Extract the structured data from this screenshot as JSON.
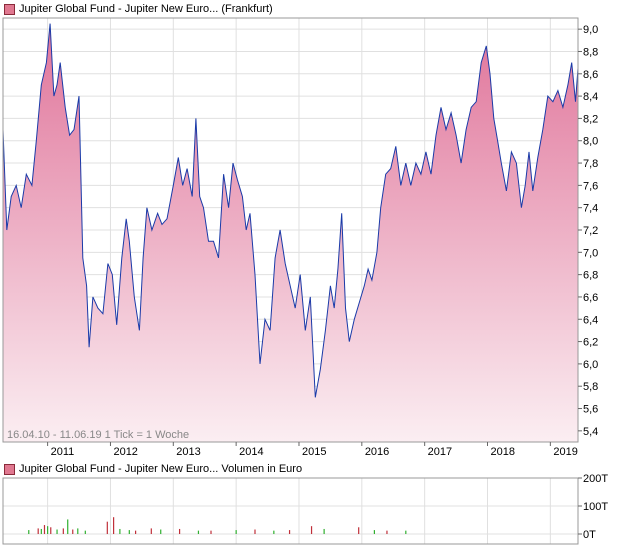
{
  "colors": {
    "line": "#1a3aa8",
    "fill_top": "#e0749a",
    "fill_bottom": "#fbeef2",
    "grid": "#e0e0e0",
    "frame": "#999999",
    "legend_swatch": "#e07890",
    "volume_red": "#c0303a",
    "volume_green": "#30b030"
  },
  "chart_data": [
    {
      "type": "area",
      "title": "Jupiter Global Fund - Jupiter New Euro... (Frankfurt)",
      "legend_swatch_color": "#e07890",
      "footer": "16.04.10 - 11.06.19   1 Tick = 1 Woche",
      "x_tick_labels": [
        "2011",
        "2012",
        "2013",
        "2014",
        "2015",
        "2016",
        "2017",
        "2018",
        "2019"
      ],
      "x_range": [
        2010.29,
        2019.44
      ],
      "y_tick_labels": [
        "5,4",
        "5,6",
        "5,8",
        "6,0",
        "6,2",
        "6,4",
        "6,6",
        "6,8",
        "7,0",
        "7,2",
        "7,4",
        "7,6",
        "7,8",
        "8,0",
        "8,2",
        "8,4",
        "8,6",
        "8,8",
        "9,0"
      ],
      "ylim": [
        5.3,
        9.1
      ],
      "grid": true,
      "series": [
        {
          "x": [
            2010.29,
            2010.35,
            2010.42,
            2010.5,
            2010.58,
            2010.66,
            2010.75,
            2010.82,
            2010.9,
            2010.98,
            2011.04,
            2011.1,
            2011.15,
            2011.2,
            2011.28,
            2011.35,
            2011.42,
            2011.5,
            2011.56,
            2011.62,
            2011.66,
            2011.72,
            2011.8,
            2011.88,
            2011.96,
            2012.03,
            2012.1,
            2012.18,
            2012.25,
            2012.3,
            2012.38,
            2012.46,
            2012.52,
            2012.58,
            2012.66,
            2012.75,
            2012.82,
            2012.9,
            2013.0,
            2013.08,
            2013.15,
            2013.22,
            2013.3,
            2013.36,
            2013.42,
            2013.48,
            2013.56,
            2013.64,
            2013.72,
            2013.8,
            2013.88,
            2013.95,
            2014.02,
            2014.1,
            2014.16,
            2014.22,
            2014.3,
            2014.38,
            2014.46,
            2014.54,
            2014.62,
            2014.7,
            2014.78,
            2014.86,
            2014.94,
            2015.02,
            2015.1,
            2015.18,
            2015.26,
            2015.34,
            2015.42,
            2015.5,
            2015.56,
            2015.62,
            2015.68,
            2015.74,
            2015.8,
            2015.88,
            2015.96,
            2016.04,
            2016.1,
            2016.16,
            2016.24,
            2016.3,
            2016.38,
            2016.46,
            2016.54,
            2016.62,
            2016.7,
            2016.78,
            2016.86,
            2016.94,
            2017.02,
            2017.1,
            2017.18,
            2017.26,
            2017.34,
            2017.42,
            2017.5,
            2017.58,
            2017.66,
            2017.74,
            2017.82,
            2017.9,
            2017.98,
            2018.04,
            2018.1,
            2018.16,
            2018.22,
            2018.3,
            2018.38,
            2018.46,
            2018.54,
            2018.6,
            2018.66,
            2018.72,
            2018.8,
            2018.88,
            2018.96,
            2019.04,
            2019.12,
            2019.2,
            2019.28,
            2019.34,
            2019.4,
            2019.44
          ],
          "y": [
            8.1,
            7.2,
            7.5,
            7.6,
            7.4,
            7.7,
            7.6,
            8.0,
            8.5,
            8.7,
            9.05,
            8.4,
            8.5,
            8.7,
            8.3,
            8.05,
            8.1,
            8.4,
            6.95,
            6.7,
            6.15,
            6.6,
            6.5,
            6.45,
            6.9,
            6.8,
            6.35,
            6.95,
            7.3,
            7.1,
            6.6,
            6.3,
            6.95,
            7.4,
            7.2,
            7.35,
            7.25,
            7.3,
            7.6,
            7.85,
            7.6,
            7.75,
            7.5,
            8.2,
            7.5,
            7.4,
            7.1,
            7.1,
            6.95,
            7.7,
            7.4,
            7.8,
            7.65,
            7.5,
            7.2,
            7.35,
            6.8,
            6.0,
            6.4,
            6.3,
            6.95,
            7.2,
            6.9,
            6.7,
            6.5,
            6.8,
            6.3,
            6.6,
            5.7,
            5.95,
            6.3,
            6.7,
            6.5,
            6.85,
            7.35,
            6.5,
            6.2,
            6.4,
            6.55,
            6.7,
            6.85,
            6.75,
            7.0,
            7.4,
            7.7,
            7.75,
            7.95,
            7.6,
            7.8,
            7.6,
            7.8,
            7.7,
            7.9,
            7.7,
            8.05,
            8.3,
            8.1,
            8.25,
            8.05,
            7.8,
            8.1,
            8.3,
            8.35,
            8.7,
            8.85,
            8.6,
            8.2,
            8.0,
            7.8,
            7.55,
            7.9,
            7.8,
            7.4,
            7.6,
            7.9,
            7.55,
            7.85,
            8.1,
            8.4,
            8.35,
            8.45,
            8.3,
            8.5,
            8.7,
            8.35,
            8.65
          ]
        }
      ]
    },
    {
      "type": "bar",
      "title": "Jupiter Global Fund - Jupiter New Euro... Volumen in Euro",
      "legend_swatch_color": "#e07890",
      "y_tick_labels": [
        "0T",
        "100T",
        "200T"
      ],
      "ylim": [
        0,
        200
      ],
      "grid": true,
      "series": [
        {
          "color": "#c0303a",
          "x": [
            2010.85,
            2010.95,
            2011.05,
            2011.25,
            2011.4,
            2011.95,
            2012.05,
            2012.4,
            2012.65,
            2013.1,
            2013.6,
            2014.3,
            2014.85,
            2015.2,
            2015.95,
            2016.4
          ],
          "values": [
            20,
            32,
            24,
            20,
            16,
            44,
            60,
            12,
            20,
            18,
            12,
            16,
            14,
            28,
            24,
            12
          ]
        },
        {
          "color": "#30b030",
          "x": [
            2010.7,
            2010.9,
            2011.0,
            2011.15,
            2011.32,
            2011.48,
            2011.6,
            2012.15,
            2012.3,
            2012.8,
            2013.4,
            2014.0,
            2014.6,
            2015.4,
            2016.2,
            2016.7
          ],
          "values": [
            14,
            18,
            28,
            16,
            52,
            20,
            12,
            18,
            14,
            16,
            12,
            14,
            12,
            18,
            14,
            12
          ]
        }
      ]
    }
  ]
}
